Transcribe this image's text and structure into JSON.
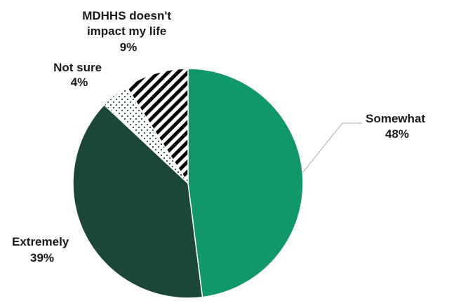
{
  "chart_data": {
    "type": "pie",
    "title": "",
    "slices": [
      {
        "label": "Somewhat",
        "value": 48,
        "value_label": "48%",
        "color": "#11976c",
        "pattern": "solid"
      },
      {
        "label": "Extremely",
        "value": 39,
        "value_label": "39%",
        "color": "#1b4638",
        "pattern": "solid"
      },
      {
        "label": "Not sure",
        "value": 4,
        "value_label": "4%",
        "color": "#ffffff",
        "pattern": "dots"
      },
      {
        "label": "MDHHS doesn't impact my life",
        "label_lines": [
          "MDHHS doesn't",
          "impact my life"
        ],
        "value": 9,
        "value_label": "9%",
        "color": "#000000",
        "pattern": "diagonal-stripes"
      }
    ],
    "start_angle": "12 o'clock",
    "direction": "clockwise",
    "legend": "none",
    "labels": "outside with leader line for Somewhat"
  }
}
